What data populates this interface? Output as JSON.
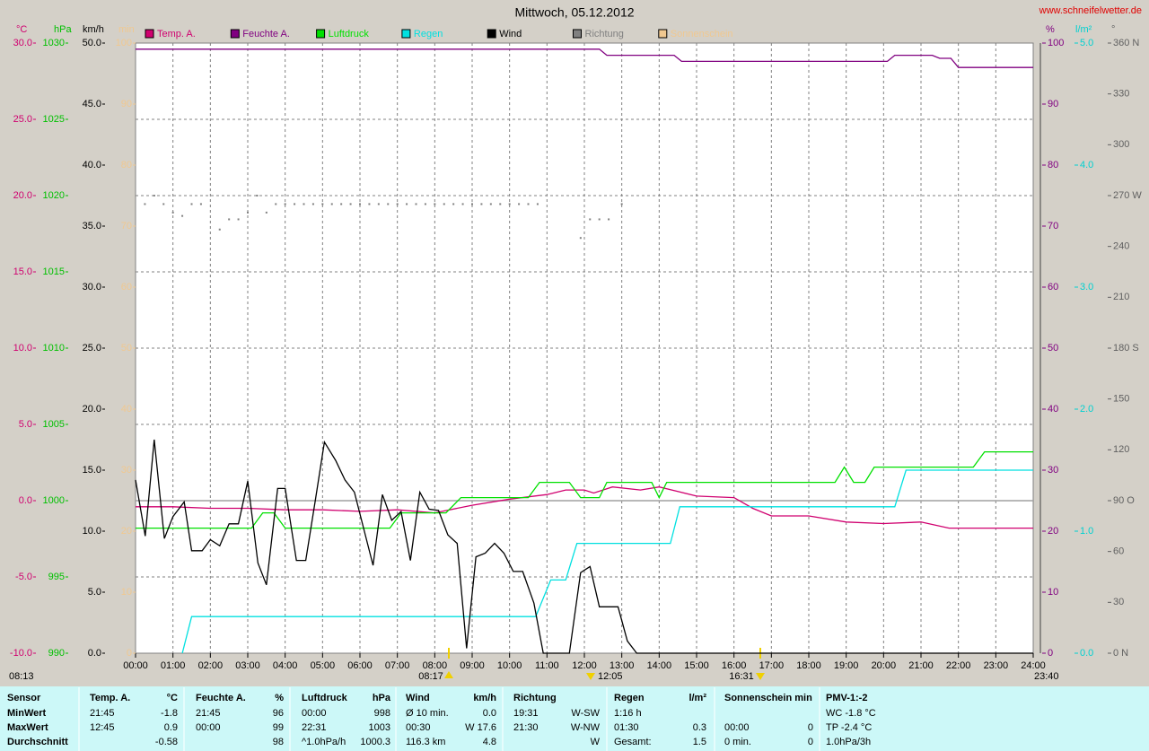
{
  "chart_data": {
    "type": "line",
    "title": "Mittwoch, 05.12.2012",
    "source": "www.schneifelwetter.de",
    "xlim": [
      0,
      24
    ],
    "xticks": [
      {
        "value": 0,
        "label": "00:00"
      },
      {
        "value": 1,
        "label": "01:00"
      },
      {
        "value": 2,
        "label": "02:00"
      },
      {
        "value": 3,
        "label": "03:00"
      },
      {
        "value": 4,
        "label": "04:00"
      },
      {
        "value": 5,
        "label": "05:00"
      },
      {
        "value": 6,
        "label": "06:00"
      },
      {
        "value": 7,
        "label": "07:00"
      },
      {
        "value": 8,
        "label": "08:00"
      },
      {
        "value": 9,
        "label": "09:00"
      },
      {
        "value": 10,
        "label": "10:00"
      },
      {
        "value": 11,
        "label": "11:00"
      },
      {
        "value": 12,
        "label": "12:00"
      },
      {
        "value": 13,
        "label": "13:00"
      },
      {
        "value": 14,
        "label": "14:00"
      },
      {
        "value": 15,
        "label": "15:00"
      },
      {
        "value": 16,
        "label": "16:00"
      },
      {
        "value": 17,
        "label": "17:00"
      },
      {
        "value": 18,
        "label": "18:00"
      },
      {
        "value": 19,
        "label": "19:00"
      },
      {
        "value": 20,
        "label": "20:00"
      },
      {
        "value": 21,
        "label": "21:00"
      },
      {
        "value": 22,
        "label": "22:00"
      },
      {
        "value": 23,
        "label": "23:00"
      },
      {
        "value": 24,
        "label": "24:00"
      }
    ],
    "grid": true,
    "axes": [
      {
        "unit": "°C",
        "color": "#d0006f",
        "side": "left",
        "lim": [
          -10,
          30
        ],
        "ticks": [
          {
            "value": -10,
            "label": "-10.0"
          },
          {
            "value": -5,
            "label": "-5.0"
          },
          {
            "value": 0,
            "label": "0.0"
          },
          {
            "value": 5,
            "label": "5.0"
          },
          {
            "value": 10,
            "label": "10.0"
          },
          {
            "value": 15,
            "label": "15.0"
          },
          {
            "value": 20,
            "label": "20.0"
          },
          {
            "value": 25,
            "label": "25.0"
          },
          {
            "value": 30,
            "label": "30.0"
          }
        ]
      },
      {
        "unit": "hPa",
        "color": "#00c000",
        "side": "left",
        "lim": [
          990,
          1030
        ],
        "ticks": [
          990,
          995,
          1000,
          1005,
          1010,
          1015,
          1020,
          1025,
          1030
        ]
      },
      {
        "unit": "km/h",
        "color": "#000000",
        "side": "left",
        "lim": [
          0,
          50
        ],
        "ticks": [
          {
            "value": 0,
            "label": "0.0"
          },
          {
            "value": 5,
            "label": "5.0"
          },
          {
            "value": 10,
            "label": "10.0"
          },
          {
            "value": 15,
            "label": "15.0"
          },
          {
            "value": 20,
            "label": "20.0"
          },
          {
            "value": 25,
            "label": "25.0"
          },
          {
            "value": 30,
            "label": "30.0"
          },
          {
            "value": 35,
            "label": "35.0"
          },
          {
            "value": 40,
            "label": "40.0"
          },
          {
            "value": 45,
            "label": "45.0"
          },
          {
            "value": 50,
            "label": "50.0"
          }
        ]
      },
      {
        "unit": "min",
        "color": "#f0c890",
        "side": "left",
        "lim": [
          0,
          100
        ],
        "ticks": [
          0,
          10,
          20,
          30,
          40,
          50,
          60,
          70,
          80,
          90,
          100
        ]
      },
      {
        "unit": "%",
        "color": "#800080",
        "side": "right",
        "lim": [
          0,
          100
        ],
        "ticks": [
          0,
          10,
          20,
          30,
          40,
          50,
          60,
          70,
          80,
          90,
          100
        ]
      },
      {
        "unit": "l/m²",
        "color": "#00d0d0",
        "side": "right",
        "lim": [
          0,
          5
        ],
        "ticks": [
          {
            "value": 0,
            "label": "0.0"
          },
          {
            "value": 1,
            "label": "1.0"
          },
          {
            "value": 2,
            "label": "2.0"
          },
          {
            "value": 3,
            "label": "3.0"
          },
          {
            "value": 4,
            "label": "4.0"
          },
          {
            "value": 5,
            "label": "5.0"
          }
        ]
      },
      {
        "unit": "°",
        "color": "#606060",
        "side": "right",
        "lim": [
          0,
          360
        ],
        "ticks": [
          {
            "value": 0,
            "label": "0 N"
          },
          30,
          60,
          {
            "value": 90,
            "label": "90 O"
          },
          120,
          150,
          {
            "value": 180,
            "label": "180 S"
          },
          210,
          240,
          {
            "value": 270,
            "label": "270 W"
          },
          300,
          330,
          {
            "value": 360,
            "label": "360 N"
          }
        ]
      }
    ],
    "series": [
      {
        "name": "Temp. A.",
        "color": "#d0006f",
        "axis": 0,
        "x": [
          0,
          1,
          2,
          3,
          4,
          5,
          6,
          7,
          8,
          9,
          10,
          11,
          11.5,
          12,
          12.25,
          12.75,
          13.5,
          14,
          14.5,
          15,
          16,
          16.5,
          17,
          18,
          19,
          20,
          21,
          21.75,
          24
        ],
        "values": [
          -0.4,
          -0.4,
          -0.5,
          -0.5,
          -0.6,
          -0.6,
          -0.7,
          -0.6,
          -0.8,
          -0.3,
          0.1,
          0.4,
          0.7,
          0.7,
          0.5,
          0.9,
          0.7,
          0.9,
          0.6,
          0.3,
          0.2,
          -0.5,
          -1.0,
          -1.0,
          -1.4,
          -1.5,
          -1.4,
          -1.8,
          -1.8
        ]
      },
      {
        "name": "Feuchte A.",
        "color": "#800080",
        "axis": 4,
        "x": [
          0,
          12.4,
          12.6,
          14.4,
          14.6,
          20.1,
          20.3,
          21.3,
          21.5,
          21.8,
          22,
          24
        ],
        "values": [
          99,
          99,
          98,
          98,
          97,
          97,
          98,
          98,
          97.5,
          97.5,
          96,
          96
        ]
      },
      {
        "name": "Luftdruck",
        "color": "#00e000",
        "axis": 1,
        "x": [
          0,
          3.1,
          3.4,
          3.7,
          4.0,
          6.8,
          7.1,
          8.3,
          8.7,
          10.5,
          10.8,
          11.6,
          11.9,
          12.4,
          12.6,
          13.8,
          14.0,
          14.2,
          18.7,
          18.95,
          19.2,
          19.5,
          19.75,
          22.4,
          22.7,
          24
        ],
        "values": [
          998.2,
          998.2,
          999.2,
          999.2,
          998.2,
          998.2,
          999.2,
          999.2,
          1000.2,
          1000.2,
          1001.2,
          1001.2,
          1000.2,
          1000.2,
          1001.2,
          1001.2,
          1000.2,
          1001.2,
          1001.2,
          1002.2,
          1001.2,
          1001.2,
          1002.2,
          1002.2,
          1003.2,
          1003.2
        ]
      },
      {
        "name": "Regen",
        "color": "#00e0e0",
        "axis": 5,
        "x": [
          1.25,
          1.5,
          10.7,
          11.1,
          11.5,
          11.8,
          14.3,
          14.55,
          20.3,
          20.6,
          24
        ],
        "values": [
          0,
          0.3,
          0.3,
          0.6,
          0.6,
          0.9,
          0.9,
          1.2,
          1.2,
          1.5,
          1.5
        ]
      },
      {
        "name": "Wind",
        "color": "#000000",
        "axis": 2,
        "x": [
          0,
          0.26,
          0.5,
          0.77,
          1.0,
          1.3,
          1.5,
          1.78,
          2.0,
          2.25,
          2.5,
          2.75,
          3.0,
          3.27,
          3.5,
          3.8,
          4.0,
          4.3,
          4.55,
          4.8,
          5.05,
          5.35,
          5.6,
          5.85,
          6.35,
          6.6,
          6.85,
          7.1,
          7.35,
          7.6,
          7.85,
          8.1,
          8.35,
          8.6,
          8.85,
          9.1,
          9.35,
          9.6,
          9.85,
          10.1,
          10.35,
          10.65,
          10.9,
          11.15,
          11.4,
          11.6,
          11.9,
          12.15,
          12.4,
          12.9,
          13.15,
          13.4,
          24
        ],
        "values": [
          14.2,
          9.6,
          17.5,
          9.4,
          11.2,
          12.4,
          8.4,
          8.4,
          9.3,
          8.8,
          10.6,
          10.6,
          14.1,
          7.4,
          5.6,
          13.5,
          13.5,
          7.6,
          7.6,
          12.4,
          17.3,
          15.8,
          14.2,
          13.2,
          7.2,
          13.0,
          10.9,
          11.6,
          7.6,
          13.2,
          11.8,
          11.7,
          9.7,
          9.0,
          0.4,
          7.9,
          8.2,
          9.0,
          8.2,
          6.7,
          6.7,
          4.1,
          0,
          0,
          0,
          0,
          6.6,
          7.1,
          3.8,
          3.8,
          1.0,
          0,
          0
        ]
      },
      {
        "name": "Richtung",
        "color": "#808080",
        "axis": 6,
        "style": "dots",
        "x": [
          0.25,
          0.5,
          0.75,
          1.0,
          1.25,
          1.5,
          1.75,
          2.25,
          2.5,
          2.75,
          3.0,
          3.25,
          3.5,
          3.75,
          4.0,
          4.25,
          4.5,
          4.75,
          5.0,
          5.25,
          5.5,
          5.75,
          6.0,
          6.25,
          6.5,
          6.75,
          7.0,
          7.25,
          7.5,
          7.75,
          8.0,
          8.25,
          8.5,
          8.75,
          9.0,
          9.25,
          9.5,
          9.75,
          10.0,
          10.25,
          10.5,
          10.75,
          11.9,
          12.15,
          12.4,
          12.65,
          13.0
        ],
        "values": [
          265,
          270,
          265,
          260,
          258,
          265,
          265,
          250,
          256,
          256,
          260,
          270,
          260,
          265,
          265,
          265,
          265,
          265,
          265,
          265,
          265,
          265,
          265,
          265,
          265,
          265,
          265,
          265,
          265,
          265,
          265,
          265,
          265,
          265,
          265,
          265,
          265,
          265,
          265,
          265,
          265,
          265,
          245,
          256,
          256,
          256,
          265
        ]
      },
      {
        "name": "Sonnenschein",
        "color": "#f0c890",
        "axis": 3,
        "x": [],
        "values": []
      }
    ],
    "annotations": [
      "08:13",
      "08:17",
      "12:05",
      "16:31",
      "23:40"
    ]
  },
  "table": {
    "header": [
      "Sensor",
      "Temp. A.",
      "°C",
      "Feuchte A.",
      "%",
      "Luftdruck",
      "hPa",
      "Wind",
      "km/h",
      "Richtung",
      null,
      "Regen",
      "l/m²",
      "Sonnenschein min",
      null,
      "PMV-1:-2"
    ],
    "rows": [
      [
        "MinWert",
        "21:45",
        "-1.8",
        "21:45",
        "96",
        "00:00",
        "998",
        "Ø 10 min.",
        "0.0",
        "19:31",
        "W-SW",
        "1:16 h",
        null,
        null,
        null,
        "WC -1.8 °C"
      ],
      [
        "MaxWert",
        "12:45",
        "0.9",
        "00:00",
        "99",
        "22:31",
        "1003",
        "00:30",
        "W 17.6",
        "21:30",
        "W-NW",
        "01:30",
        "0.3",
        "00:00",
        "0",
        "TP -2.4 °C"
      ],
      [
        "Durchschnitt",
        null,
        "-0.58",
        null,
        "98",
        "^1.0hPa/h",
        "1000.3",
        "116.3 km",
        "4.8",
        null,
        "W",
        "Gesamt:",
        "1.5",
        "0 min.",
        "0",
        "1.0hPa/3h"
      ]
    ]
  }
}
